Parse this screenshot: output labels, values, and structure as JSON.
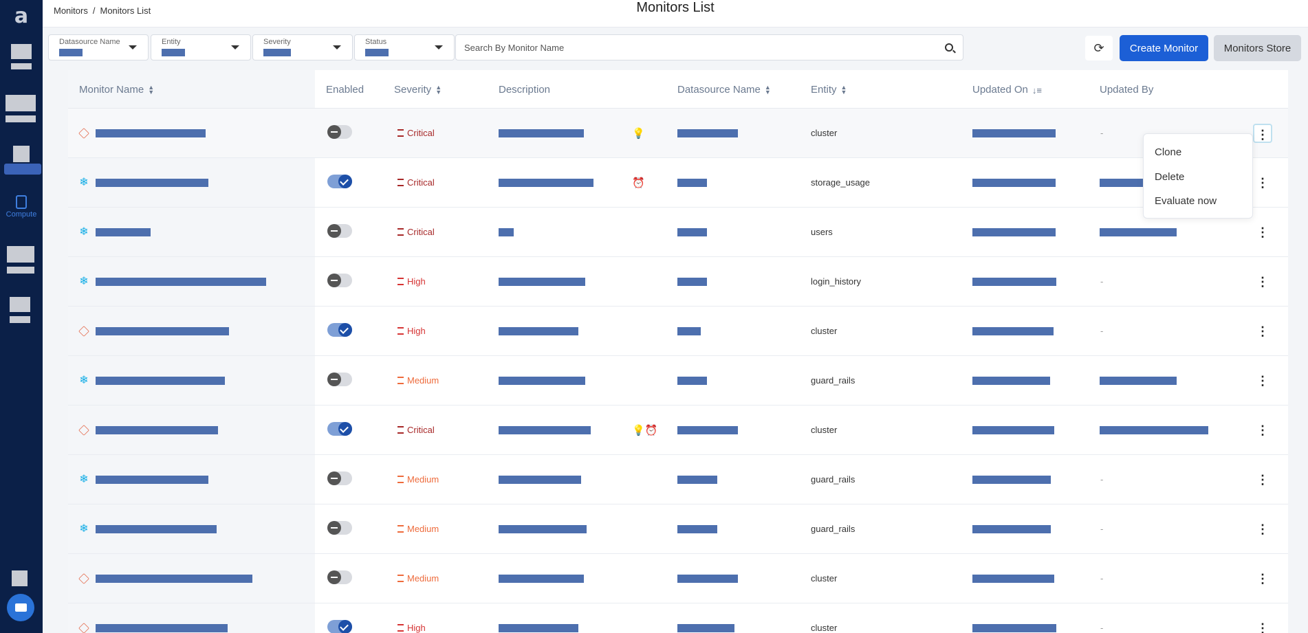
{
  "app": {
    "logo_letter": "a"
  },
  "sidebar": {
    "compute_label": "Compute"
  },
  "breadcrumb": {
    "root": "Monitors",
    "separator": "/",
    "current": "Monitors List"
  },
  "page_title": "Monitors List",
  "filters": [
    {
      "label": "Datasource Name"
    },
    {
      "label": "Entity"
    },
    {
      "label": "Severity"
    },
    {
      "label": "Status"
    }
  ],
  "search": {
    "placeholder": "Search By Monitor Name",
    "value": ""
  },
  "buttons": {
    "refresh_icon": "refresh-icon",
    "create": "Create Monitor",
    "store": "Monitors Store"
  },
  "table": {
    "columns": [
      "Monitor Name",
      "Enabled",
      "Severity",
      "Description",
      "Datasource Name",
      "Entity",
      "Updated On",
      "Updated By"
    ],
    "rows": [
      {
        "source": "stack",
        "enabled": false,
        "severity": "Critical",
        "level": "critical",
        "entity": "cluster",
        "icons": "💡",
        "updated_by": "-"
      },
      {
        "source": "snow",
        "enabled": true,
        "severity": "Critical",
        "level": "critical",
        "entity": "storage_usage",
        "icons": "⏰",
        "updated_by": ""
      },
      {
        "source": "snow",
        "enabled": false,
        "severity": "Critical",
        "level": "critical",
        "entity": "users",
        "icons": "",
        "updated_by": ""
      },
      {
        "source": "snow",
        "enabled": false,
        "severity": "High",
        "level": "high",
        "entity": "login_history",
        "icons": "",
        "updated_by": "-"
      },
      {
        "source": "stack",
        "enabled": true,
        "severity": "High",
        "level": "high",
        "entity": "cluster",
        "icons": "",
        "updated_by": "-"
      },
      {
        "source": "snow",
        "enabled": false,
        "severity": "Medium",
        "level": "medium",
        "entity": "guard_rails",
        "icons": "",
        "updated_by": ""
      },
      {
        "source": "stack",
        "enabled": true,
        "severity": "Critical",
        "level": "critical",
        "entity": "cluster",
        "icons": "💡⏰",
        "updated_by": ""
      },
      {
        "source": "snow",
        "enabled": false,
        "severity": "Medium",
        "level": "medium",
        "entity": "guard_rails",
        "icons": "",
        "updated_by": "-"
      },
      {
        "source": "snow",
        "enabled": false,
        "severity": "Medium",
        "level": "medium",
        "entity": "guard_rails",
        "icons": "",
        "updated_by": "-"
      },
      {
        "source": "stack",
        "enabled": false,
        "severity": "Medium",
        "level": "medium",
        "entity": "cluster",
        "icons": "",
        "updated_by": "-"
      },
      {
        "source": "stack",
        "enabled": true,
        "severity": "High",
        "level": "high",
        "entity": "cluster",
        "icons": "",
        "updated_by": "-"
      }
    ]
  },
  "context_menu": {
    "items": [
      "Clone",
      "Delete",
      "Evaluate now"
    ]
  }
}
